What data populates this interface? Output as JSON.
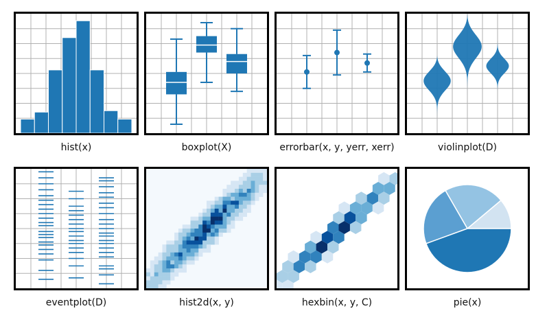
{
  "colors": {
    "primary": "#1f77b4",
    "grid": "#b0b0b0",
    "border": "#000000",
    "pie": [
      "#1f77b4",
      "#5b9fd1",
      "#94c3e3",
      "#d2e3f1"
    ],
    "density": [
      "#f4f9fd",
      "#d6e6f4",
      "#a9cfe6",
      "#6aaed6",
      "#3182bd",
      "#08519c",
      "#08306b"
    ]
  },
  "chart_data": [
    {
      "type": "bar",
      "caption": "hist(x)",
      "values": [
        1,
        1.5,
        4.5,
        6.8,
        8.0,
        4.5,
        1.6,
        1.0
      ],
      "ylim": [
        0,
        8.5
      ],
      "grid": true
    },
    {
      "type": "boxplot",
      "caption": "boxplot(X)",
      "ylim": [
        0,
        8
      ],
      "grid": true,
      "boxes": [
        {
          "x": 2,
          "whisker_low": 0.6,
          "q1": 2.6,
          "median": 3.4,
          "q3": 4.1,
          "whisker_high": 6.3
        },
        {
          "x": 4,
          "whisker_low": 3.4,
          "q1": 5.4,
          "median": 5.9,
          "q3": 6.5,
          "whisker_high": 7.4
        },
        {
          "x": 6,
          "whisker_low": 2.8,
          "q1": 4.0,
          "median": 4.8,
          "q3": 5.3,
          "whisker_high": 7.0
        }
      ]
    },
    {
      "type": "errorbar",
      "caption": "errorbar(x, y, yerr, xerr)",
      "ylim": [
        0,
        8
      ],
      "grid": true,
      "points": [
        {
          "x": 2,
          "y": 4.1,
          "yerr": 1.1,
          "xerr": 0.3
        },
        {
          "x": 4,
          "y": 5.4,
          "yerr": 1.5,
          "xerr": 0.3
        },
        {
          "x": 6,
          "y": 4.7,
          "yerr": 0.6,
          "xerr": 0.3
        }
      ]
    },
    {
      "type": "violin",
      "caption": "violinplot(D)",
      "ylim": [
        0,
        8
      ],
      "grid": true,
      "violins": [
        {
          "x": 2,
          "min": 0.8,
          "max": 5.2,
          "peak": 3.5,
          "halfwidth": 0.9
        },
        {
          "x": 4,
          "min": 2.6,
          "max": 8.0,
          "peak": 5.8,
          "halfwidth": 0.95
        },
        {
          "x": 6,
          "min": 2.8,
          "max": 6.2,
          "peak": 4.5,
          "halfwidth": 0.75
        }
      ]
    },
    {
      "type": "eventplot",
      "caption": "eventplot(D)",
      "ylim": [
        0,
        8
      ],
      "grid": true,
      "rows": [
        {
          "x": 2,
          "events": [
            0.6,
            1.2,
            1.9,
            2.3,
            2.6,
            2.9,
            3.1,
            3.4,
            3.6,
            3.8,
            4.2,
            4.4,
            4.7,
            5.0,
            5.3,
            5.6,
            5.9,
            6.2,
            6.6,
            7.0,
            7.4,
            7.8
          ]
        },
        {
          "x": 4,
          "events": [
            0.7,
            1.5,
            2.0,
            2.4,
            2.7,
            3.0,
            3.2,
            3.5,
            3.8,
            4.0,
            4.3,
            4.6,
            4.9,
            5.2,
            5.5,
            6.0,
            6.5
          ]
        },
        {
          "x": 6,
          "events": [
            0.3,
            0.9,
            1.3,
            1.5,
            2.1,
            2.4,
            2.7,
            3.0,
            3.2,
            3.5,
            3.7,
            4.0,
            4.3,
            4.6,
            5.0,
            5.4,
            5.7,
            6.1,
            6.4,
            6.8,
            7.2,
            7.4
          ]
        }
      ]
    },
    {
      "type": "heatmap",
      "caption": "hist2d(x, y)",
      "kind": "hist2d",
      "slope": 0.9,
      "spread": 0.09,
      "grid": false
    },
    {
      "type": "heatmap",
      "caption": "hexbin(x, y, C)",
      "kind": "hexbin",
      "slope": 0.9,
      "spread": 0.07,
      "grid": false
    },
    {
      "type": "pie",
      "caption": "pie(x)",
      "values": [
        1,
        2,
        2,
        4
      ],
      "order": "counterclockwise from 0°",
      "grid": false
    }
  ]
}
